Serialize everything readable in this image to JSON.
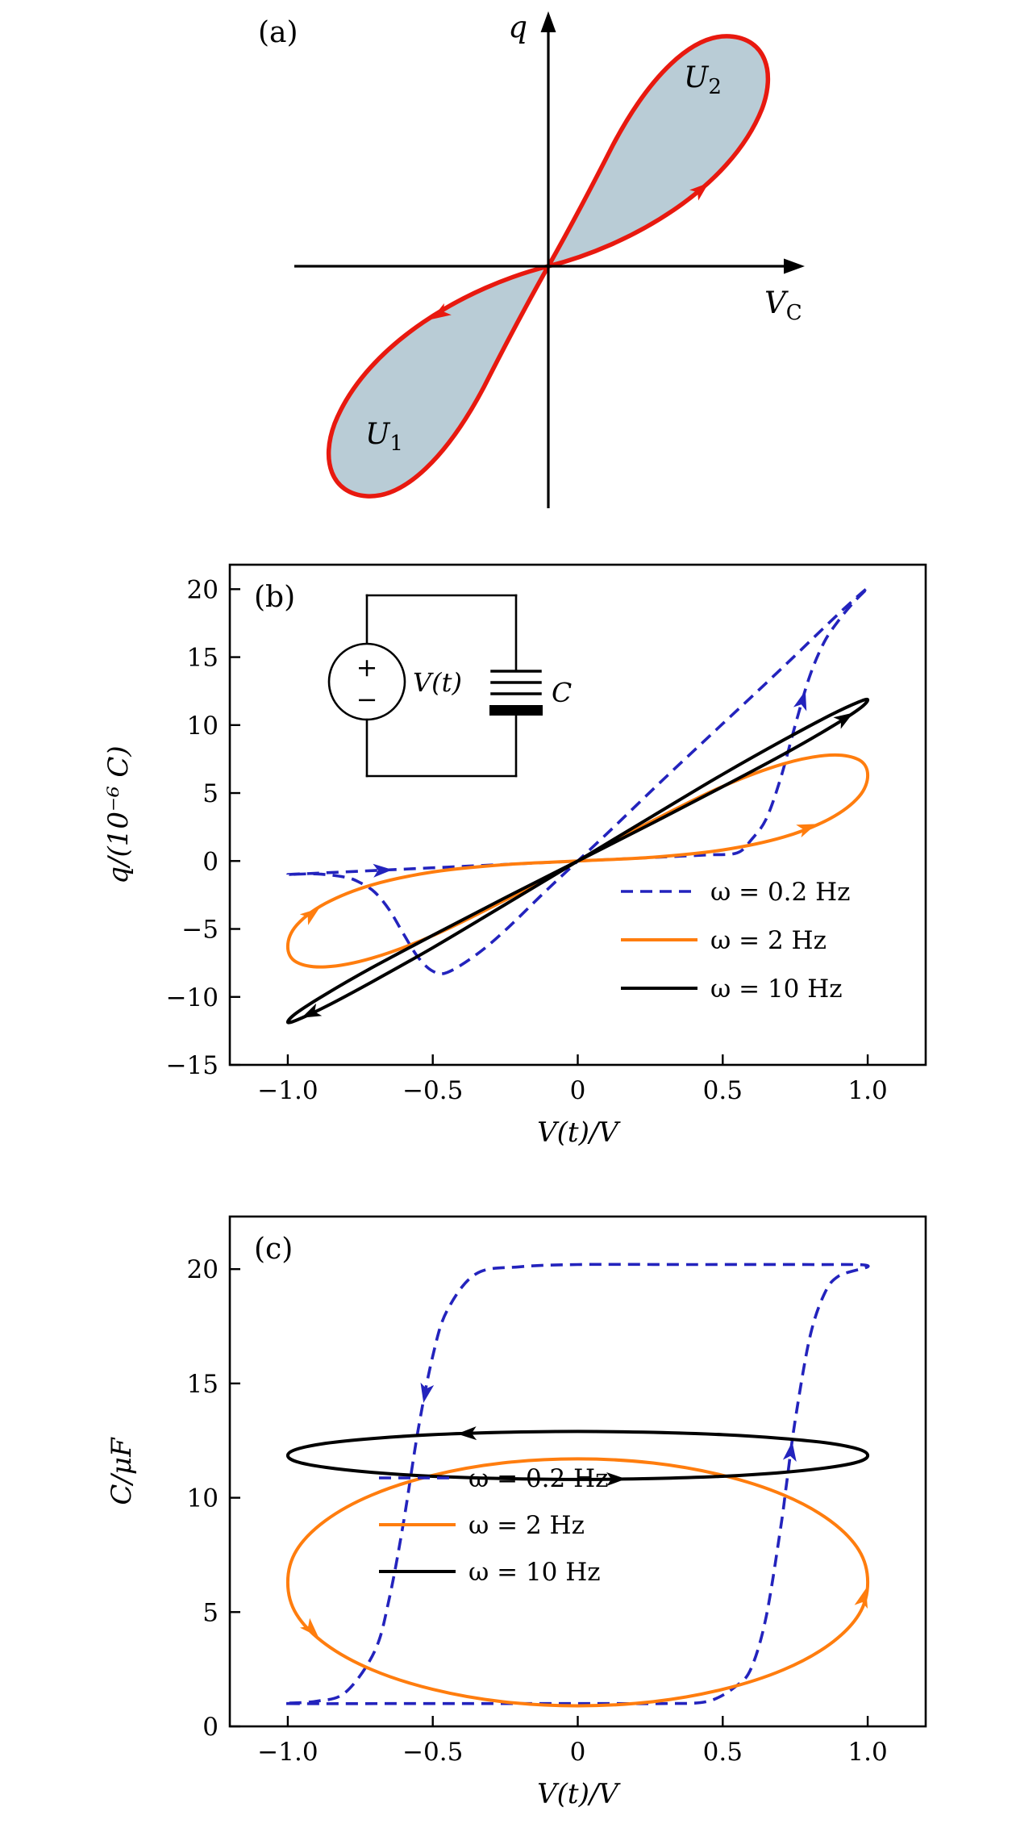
{
  "figure": {
    "palette": {
      "red": "#e8190f",
      "lobe_fill": "#b9ccd6",
      "blue": "#2323bd",
      "orange": "#ff7d0e",
      "black": "#000000"
    }
  },
  "chart_data": [
    {
      "panel": "(a)",
      "type": "schematic",
      "description": "Pinched hysteresis loop of charge q versus capacitor voltage, with shaded lobe areas",
      "ylabel": "q",
      "xlabel_base": "V",
      "xlabel_sub": "C",
      "lobes": [
        {
          "label_base": "U",
          "label_sub": "2",
          "position": "upper-right"
        },
        {
          "label_base": "U",
          "label_sub": "1",
          "position": "lower-left"
        }
      ]
    },
    {
      "panel": "(b)",
      "type": "line",
      "xlabel": "V(t)/V",
      "ylabel": "q/(10⁻⁶ C)",
      "xlim": [
        -1.2,
        1.2
      ],
      "ylim": [
        -15,
        21.8
      ],
      "xticks": {
        "values": [
          -1,
          -0.5,
          0,
          0.5,
          1
        ],
        "labels": [
          "−1.0",
          "−0.5",
          "0",
          "0.5",
          "1.0"
        ]
      },
      "yticks": {
        "values": [
          -15,
          -10,
          -5,
          0,
          5,
          10,
          15,
          20
        ],
        "labels": [
          "−15",
          "−10",
          "−5",
          "0",
          "5",
          "10",
          "15",
          "20"
        ]
      },
      "legend_position": "lower-right",
      "inset": {
        "source_label": "V(t)",
        "source_plus": "+",
        "source_minus": "−",
        "capacitor_label": "C"
      },
      "series": [
        {
          "name": "ω = 0.2 Hz",
          "color": "#2323bd",
          "dash": true,
          "closed": true,
          "arrows": [
            2,
            15
          ],
          "points": [
            [
              -1,
              -1
            ],
            [
              -0.9,
              -0.9
            ],
            [
              -0.75,
              -0.75
            ],
            [
              -0.6,
              -0.6
            ],
            [
              -0.45,
              -0.45
            ],
            [
              -0.3,
              -0.3
            ],
            [
              -0.15,
              -0.15
            ],
            [
              0,
              0
            ],
            [
              0.15,
              0.15
            ],
            [
              0.3,
              0.3
            ],
            [
              0.45,
              0.45
            ],
            [
              0.55,
              0.6
            ],
            [
              0.6,
              1.6
            ],
            [
              0.65,
              3.1
            ],
            [
              0.7,
              6.1
            ],
            [
              0.75,
              10
            ],
            [
              0.8,
              13.6
            ],
            [
              0.85,
              16.1
            ],
            [
              0.9,
              17.7
            ],
            [
              0.95,
              19
            ],
            [
              1,
              20.1
            ],
            [
              0.9,
              18.2
            ],
            [
              0.7,
              14.1
            ],
            [
              0.5,
              10.1
            ],
            [
              0.3,
              6.1
            ],
            [
              0.1,
              2
            ],
            [
              -0.1,
              -2
            ],
            [
              -0.25,
              -5.1
            ],
            [
              -0.35,
              -6.9
            ],
            [
              -0.45,
              -8.2
            ],
            [
              -0.5,
              -8.1
            ],
            [
              -0.55,
              -7.1
            ],
            [
              -0.6,
              -5.4
            ],
            [
              -0.65,
              -3.6
            ],
            [
              -0.7,
              -2.3
            ],
            [
              -0.75,
              -1.6
            ],
            [
              -0.8,
              -1.2
            ],
            [
              -0.9,
              -0.95
            ]
          ]
        },
        {
          "name": "ω = 2 Hz",
          "color": "#ff7d0e",
          "dash": false,
          "closed": true,
          "arrows": [
            3,
            19
          ],
          "points": [
            [
              0,
              0
            ],
            [
              0.26,
              0.28
            ],
            [
              0.5,
              0.81
            ],
            [
              0.71,
              1.76
            ],
            [
              0.87,
              3.12
            ],
            [
              0.97,
              4.74
            ],
            [
              1,
              6.3
            ],
            [
              0.97,
              7.44
            ],
            [
              0.87,
              7.79
            ],
            [
              0.71,
              7.15
            ],
            [
              0.5,
              5.49
            ],
            [
              0.26,
              2.98
            ],
            [
              0,
              0
            ],
            [
              -0.26,
              -2.98
            ],
            [
              -0.5,
              -5.49
            ],
            [
              -0.71,
              -7.15
            ],
            [
              -0.87,
              -7.79
            ],
            [
              -0.97,
              -7.44
            ],
            [
              -1,
              -6.3
            ],
            [
              -0.97,
              -4.74
            ],
            [
              -0.87,
              -3.12
            ],
            [
              -0.71,
              -1.76
            ],
            [
              -0.5,
              -0.81
            ],
            [
              -0.26,
              -0.28
            ]
          ]
        },
        {
          "name": "ω = 10 Hz",
          "color": "#000000",
          "dash": false,
          "closed": true,
          "arrows": [
            4,
            16
          ],
          "points": [
            [
              0,
              0
            ],
            [
              0.26,
              2.81
            ],
            [
              0.5,
              5.47
            ],
            [
              0.71,
              7.85
            ],
            [
              0.87,
              9.81
            ],
            [
              0.97,
              11.18
            ],
            [
              1,
              11.85
            ],
            [
              0.97,
              11.71
            ],
            [
              0.87,
              10.72
            ],
            [
              0.71,
              8.9
            ],
            [
              0.5,
              6.38
            ],
            [
              0.26,
              3.33
            ],
            [
              0,
              0
            ],
            [
              -0.26,
              -3.33
            ],
            [
              -0.5,
              -6.38
            ],
            [
              -0.71,
              -8.9
            ],
            [
              -0.87,
              -10.72
            ],
            [
              -0.97,
              -11.71
            ],
            [
              -1,
              -11.85
            ],
            [
              -0.97,
              -11.18
            ],
            [
              -0.87,
              -9.81
            ],
            [
              -0.71,
              -7.85
            ],
            [
              -0.5,
              -5.47
            ],
            [
              -0.26,
              -2.81
            ]
          ]
        }
      ]
    },
    {
      "panel": "(c)",
      "type": "line",
      "xlabel": "V(t)/V",
      "ylabel": "C/μF",
      "xlim": [
        -1.2,
        1.2
      ],
      "ylim": [
        0,
        22.3
      ],
      "xticks": {
        "values": [
          -1,
          -0.5,
          0,
          0.5,
          1
        ],
        "labels": [
          "−1.0",
          "−0.5",
          "0",
          "0.5",
          "1.0"
        ]
      },
      "yticks": {
        "values": [
          0,
          5,
          10,
          15,
          20
        ],
        "labels": [
          "0",
          "5",
          "10",
          "15",
          "20"
        ]
      },
      "legend_position": "center",
      "series": [
        {
          "name": "ω = 0.2 Hz",
          "color": "#2323bd",
          "dash": true,
          "closed": true,
          "arrows": [
            10,
            22
          ],
          "points": [
            [
              -1,
              1
            ],
            [
              -0.6,
              1
            ],
            [
              -0.2,
              1
            ],
            [
              0.1,
              1
            ],
            [
              0.3,
              1
            ],
            [
              0.45,
              1.1
            ],
            [
              0.55,
              1.8
            ],
            [
              0.6,
              2.6
            ],
            [
              0.65,
              4.8
            ],
            [
              0.7,
              8.7
            ],
            [
              0.72,
              10.6
            ],
            [
              0.75,
              13.4
            ],
            [
              0.8,
              17
            ],
            [
              0.85,
              18.9
            ],
            [
              0.9,
              19.7
            ],
            [
              1,
              20.15
            ],
            [
              0.8,
              20.2
            ],
            [
              0.4,
              20.2
            ],
            [
              0,
              20.2
            ],
            [
              -0.2,
              20.1
            ],
            [
              -0.35,
              19.8
            ],
            [
              -0.45,
              18.2
            ],
            [
              -0.5,
              16.2
            ],
            [
              -0.55,
              13
            ],
            [
              -0.6,
              9
            ],
            [
              -0.65,
              5.6
            ],
            [
              -0.7,
              3.3
            ],
            [
              -0.8,
              1.5
            ],
            [
              -0.9,
              1.1
            ]
          ]
        },
        {
          "name": "ω = 2 Hz",
          "color": "#ff7d0e",
          "dash": false,
          "closed": true,
          "arrows": [
            5,
            19
          ],
          "points": [
            [
              0,
              0.9
            ],
            [
              0.26,
              1.08
            ],
            [
              0.5,
              1.62
            ],
            [
              0.71,
              2.48
            ],
            [
              0.87,
              3.6
            ],
            [
              0.97,
              4.9
            ],
            [
              1,
              6.3
            ],
            [
              0.97,
              7.7
            ],
            [
              0.87,
              9
            ],
            [
              0.71,
              10.12
            ],
            [
              0.5,
              10.98
            ],
            [
              0.26,
              11.52
            ],
            [
              0,
              11.7
            ],
            [
              -0.26,
              11.52
            ],
            [
              -0.5,
              10.98
            ],
            [
              -0.71,
              10.12
            ],
            [
              -0.87,
              9
            ],
            [
              -0.97,
              7.7
            ],
            [
              -1,
              6.3
            ],
            [
              -0.97,
              4.9
            ],
            [
              -0.87,
              3.6
            ],
            [
              -0.71,
              2.48
            ],
            [
              -0.5,
              1.62
            ],
            [
              -0.26,
              1.08
            ]
          ]
        },
        {
          "name": "ω = 10 Hz",
          "color": "#000000",
          "dash": false,
          "closed": true,
          "arrows": [
            0,
            13
          ],
          "points": [
            [
              0,
              10.8
            ],
            [
              0.26,
              10.84
            ],
            [
              0.5,
              10.94
            ],
            [
              0.71,
              11.11
            ],
            [
              0.87,
              11.33
            ],
            [
              0.97,
              11.58
            ],
            [
              1,
              11.85
            ],
            [
              0.97,
              12.12
            ],
            [
              0.87,
              12.38
            ],
            [
              0.71,
              12.59
            ],
            [
              0.5,
              12.76
            ],
            [
              0.26,
              12.86
            ],
            [
              0,
              12.9
            ],
            [
              -0.26,
              12.86
            ],
            [
              -0.5,
              12.76
            ],
            [
              -0.71,
              12.59
            ],
            [
              -0.87,
              12.38
            ],
            [
              -0.97,
              12.12
            ],
            [
              -1,
              11.85
            ],
            [
              -0.97,
              11.58
            ],
            [
              -0.87,
              11.33
            ],
            [
              -0.71,
              11.11
            ],
            [
              -0.5,
              10.94
            ],
            [
              -0.26,
              10.84
            ]
          ]
        }
      ]
    }
  ]
}
